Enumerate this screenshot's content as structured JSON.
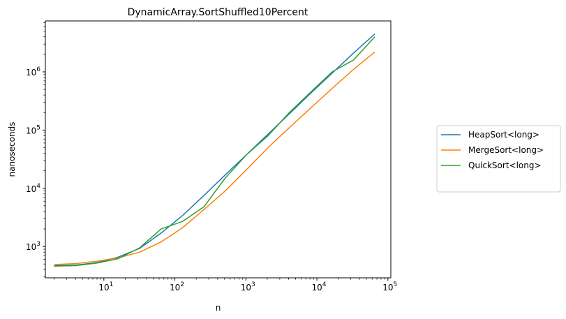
{
  "chart_data": {
    "type": "line",
    "title": "DynamicArray.SortShuffled10Percent",
    "xlabel": "n",
    "ylabel": "nanoseconds",
    "xscale": "log",
    "yscale": "log",
    "xlim": [
      1.5,
      110000
    ],
    "ylim": [
      290,
      7500000
    ],
    "grid": false,
    "legend_position": "outside-right",
    "x_ticks": [
      {
        "value": 10,
        "base": "10",
        "exp": "1"
      },
      {
        "value": 100,
        "base": "10",
        "exp": "2"
      },
      {
        "value": 1000,
        "base": "10",
        "exp": "3"
      },
      {
        "value": 10000,
        "base": "10",
        "exp": "4"
      },
      {
        "value": 100000,
        "base": "10",
        "exp": "5"
      }
    ],
    "y_ticks": [
      {
        "value": 1000,
        "base": "10",
        "exp": "3"
      },
      {
        "value": 10000,
        "base": "10",
        "exp": "4"
      },
      {
        "value": 100000,
        "base": "10",
        "exp": "5"
      },
      {
        "value": 1000000,
        "base": "10",
        "exp": "6"
      }
    ],
    "x": [
      2,
      4,
      8,
      16,
      32,
      64,
      128,
      256,
      512,
      1024,
      2048,
      4096,
      8192,
      16384,
      32768,
      65536
    ],
    "series": [
      {
        "name": "HeapSort<long>",
        "color": "#1f77b4",
        "values": [
          470,
          480,
          530,
          660,
          930,
          1700,
          3400,
          7500,
          17000,
          38000,
          85000,
          190000,
          430000,
          950000,
          2100000,
          4500000
        ]
      },
      {
        "name": "MergeSort<long>",
        "color": "#ff7f0e",
        "values": [
          490,
          510,
          560,
          640,
          800,
          1200,
          2100,
          4300,
          9000,
          21000,
          50000,
          110000,
          240000,
          520000,
          1100000,
          2200000
        ]
      },
      {
        "name": "QuickSort<long>",
        "color": "#2ca02c",
        "values": [
          460,
          470,
          520,
          620,
          950,
          2000,
          2700,
          4800,
          15000,
          38000,
          80000,
          200000,
          450000,
          1000000,
          1600000,
          4000000
        ]
      }
    ]
  }
}
